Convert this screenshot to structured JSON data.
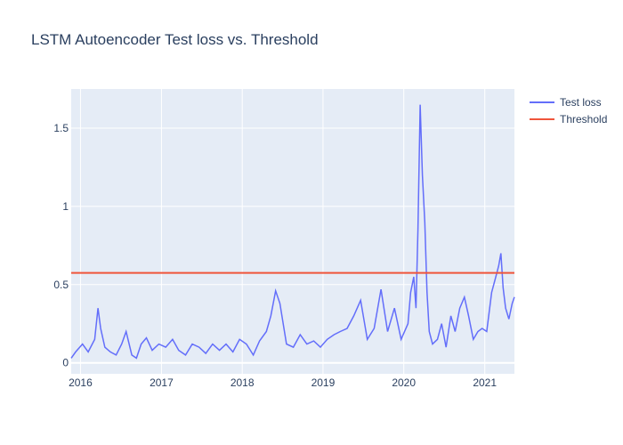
{
  "chart_data": {
    "type": "line",
    "title": "LSTM Autoencoder Test loss vs. Threshold",
    "xlabel": "",
    "ylabel": "",
    "x_ticks": [
      "2016",
      "2017",
      "2018",
      "2019",
      "2020",
      "2021"
    ],
    "y_ticks": [
      "0",
      "0.5",
      "1",
      "1.5"
    ],
    "xlim": [
      "2015-11-20",
      "2021-05-15"
    ],
    "ylim": [
      -0.07,
      1.75
    ],
    "grid": true,
    "legend_position": "top-right",
    "series": [
      {
        "name": "Test loss",
        "color": "#636efa",
        "x": [
          "2015-11-20",
          "2015-12-10",
          "2016-01-10",
          "2016-02-05",
          "2016-03-05",
          "2016-03-20",
          "2016-04-01",
          "2016-04-20",
          "2016-05-15",
          "2016-06-10",
          "2016-07-05",
          "2016-07-25",
          "2016-08-20",
          "2016-09-10",
          "2016-10-01",
          "2016-10-25",
          "2016-11-20",
          "2016-12-20",
          "2017-01-20",
          "2017-02-20",
          "2017-03-20",
          "2017-04-20",
          "2017-05-20",
          "2017-06-20",
          "2017-07-20",
          "2017-08-20",
          "2017-09-20",
          "2017-10-20",
          "2017-11-20",
          "2017-12-20",
          "2018-01-20",
          "2018-02-20",
          "2018-03-20",
          "2018-04-20",
          "2018-05-10",
          "2018-06-01",
          "2018-06-20",
          "2018-07-20",
          "2018-08-20",
          "2018-09-20",
          "2018-10-20",
          "2018-11-20",
          "2018-12-20",
          "2019-01-20",
          "2019-02-20",
          "2019-03-20",
          "2019-04-20",
          "2019-05-20",
          "2019-06-20",
          "2019-07-20",
          "2019-08-20",
          "2019-09-20",
          "2019-10-20",
          "2019-11-20",
          "2019-12-20",
          "2020-01-20",
          "2020-02-01",
          "2020-02-15",
          "2020-02-25",
          "2020-03-05",
          "2020-03-15",
          "2020-03-25",
          "2020-04-05",
          "2020-04-15",
          "2020-04-25",
          "2020-05-10",
          "2020-06-01",
          "2020-06-20",
          "2020-07-10",
          "2020-08-01",
          "2020-08-20",
          "2020-09-10",
          "2020-10-01",
          "2020-10-20",
          "2020-11-10",
          "2020-12-01",
          "2020-12-20",
          "2021-01-10",
          "2021-02-01",
          "2021-02-20",
          "2021-03-05",
          "2021-03-15",
          "2021-03-25",
          "2021-04-05",
          "2021-04-20",
          "2021-05-05",
          "2021-05-15"
        ],
        "values": [
          0.03,
          0.07,
          0.12,
          0.07,
          0.15,
          0.35,
          0.22,
          0.1,
          0.07,
          0.05,
          0.12,
          0.2,
          0.05,
          0.03,
          0.12,
          0.16,
          0.08,
          0.12,
          0.1,
          0.15,
          0.08,
          0.05,
          0.12,
          0.1,
          0.06,
          0.12,
          0.08,
          0.12,
          0.07,
          0.15,
          0.12,
          0.05,
          0.14,
          0.2,
          0.3,
          0.46,
          0.38,
          0.12,
          0.1,
          0.18,
          0.12,
          0.14,
          0.1,
          0.15,
          0.18,
          0.2,
          0.22,
          0.3,
          0.4,
          0.15,
          0.22,
          0.47,
          0.2,
          0.35,
          0.15,
          0.25,
          0.45,
          0.55,
          0.35,
          0.85,
          1.65,
          1.2,
          0.9,
          0.45,
          0.2,
          0.12,
          0.15,
          0.25,
          0.1,
          0.3,
          0.2,
          0.35,
          0.42,
          0.3,
          0.15,
          0.2,
          0.22,
          0.2,
          0.45,
          0.55,
          0.62,
          0.7,
          0.48,
          0.35,
          0.28,
          0.38,
          0.42
        ]
      },
      {
        "name": "Threshold",
        "color": "#ef553b",
        "x": [
          "2015-11-20",
          "2021-05-15"
        ],
        "values": [
          0.575,
          0.575
        ]
      }
    ]
  }
}
